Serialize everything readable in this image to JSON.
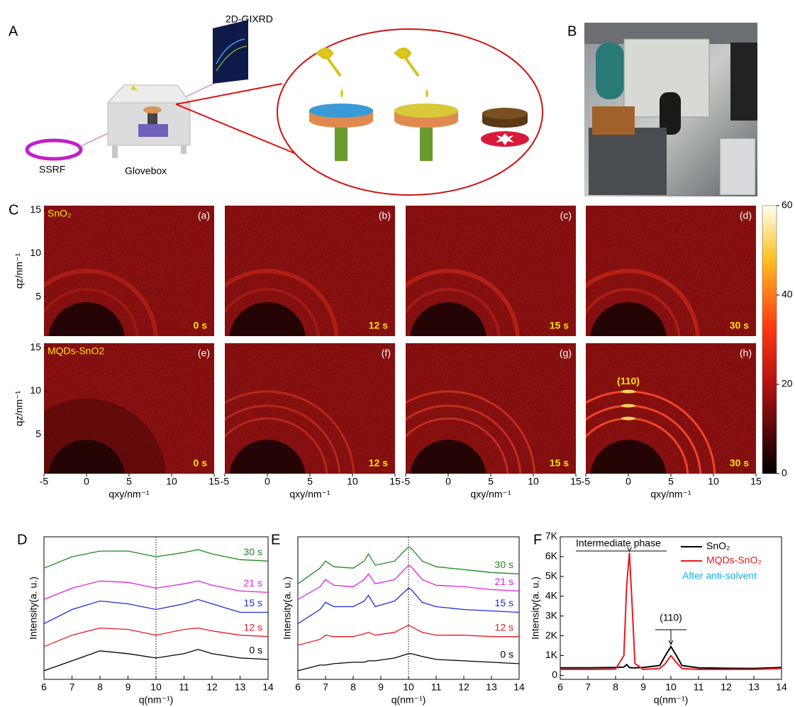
{
  "panel_a": {
    "label": "A",
    "detector": "2D-GIXRD",
    "source": "SSRF",
    "chamber": "Glovebox"
  },
  "panel_b": {
    "label": "B"
  },
  "panel_c": {
    "label": "C",
    "xlabel": "qxy/nm⁻¹",
    "ylabel": "qz/nm⁻¹",
    "xlim": [
      -5,
      15
    ],
    "xticks": [
      -5,
      0,
      5,
      10,
      15
    ],
    "ylim": [
      0.5,
      15.5
    ],
    "yticks": [
      5,
      10,
      15
    ],
    "colorbar": {
      "lim": [
        0,
        60
      ],
      "ticks": [
        0,
        20,
        40,
        60
      ]
    },
    "peak_label": "(110)",
    "rows": [
      {
        "sample": "SnO₂",
        "panels": [
          {
            "label": "(a)",
            "time": "0 s"
          },
          {
            "label": "(b)",
            "time": "12 s"
          },
          {
            "label": "(c)",
            "time": "15 s"
          },
          {
            "label": "(d)",
            "time": "30 s"
          }
        ]
      },
      {
        "sample": "MQDs-SnO2",
        "panels": [
          {
            "label": "(e)",
            "time": "0 s"
          },
          {
            "label": "(f)",
            "time": "12 s"
          },
          {
            "label": "(g)",
            "time": "15 s"
          },
          {
            "label": "(h)",
            "time": "30 s"
          }
        ]
      }
    ]
  },
  "chart_data": [
    {
      "type": "line",
      "label": "D",
      "xlabel": "q(nm⁻¹)",
      "ylabel": "Intensity(a. u.)",
      "xlim": [
        6,
        14
      ],
      "xticks": [
        6,
        7,
        8,
        9,
        10,
        11,
        12,
        13,
        14
      ],
      "ylim": [
        0,
        100
      ],
      "reference_line": 10,
      "x": [
        6,
        7,
        8,
        9,
        10,
        11,
        11.5,
        12,
        13,
        14
      ],
      "series": [
        {
          "name": "0 s",
          "color": "#000000",
          "values": [
            6,
            13,
            20,
            18,
            15,
            18,
            21,
            18,
            15,
            14
          ]
        },
        {
          "name": "12 s",
          "color": "#e8191e",
          "values": [
            23,
            31,
            36,
            35,
            31,
            35,
            36,
            34,
            31,
            30
          ]
        },
        {
          "name": "15 s",
          "color": "#1c2ed8",
          "values": [
            39,
            49,
            55,
            53,
            49,
            53,
            56,
            53,
            47,
            47
          ]
        },
        {
          "name": "21 s",
          "color": "#e020e0",
          "values": [
            56,
            64,
            69,
            68,
            64,
            67,
            69,
            66,
            62,
            61
          ]
        },
        {
          "name": "30 s",
          "color": "#1a8a1a",
          "values": [
            78,
            86,
            90,
            90,
            86,
            89,
            91,
            88,
            84,
            83
          ]
        }
      ]
    },
    {
      "type": "line",
      "label": "E",
      "xlabel": "q(nm⁻¹)",
      "ylabel": "Intensity(a. u.)",
      "xlim": [
        6,
        14
      ],
      "xticks": [
        6,
        7,
        8,
        9,
        10,
        11,
        12,
        13,
        14
      ],
      "ylim": [
        0,
        100
      ],
      "reference_line": 10,
      "x": [
        6,
        6.8,
        7,
        7.3,
        8,
        8.4,
        8.55,
        8.8,
        9.5,
        10,
        10.1,
        10.5,
        11,
        12,
        13,
        14
      ],
      "series": [
        {
          "name": "0 s",
          "color": "#000000",
          "values": [
            6,
            10,
            10,
            11,
            12,
            12,
            13,
            13,
            15,
            18,
            18,
            16,
            14,
            13,
            12,
            11
          ]
        },
        {
          "name": "12 s",
          "color": "#e8191e",
          "values": [
            24,
            28,
            31,
            30,
            30,
            32,
            33,
            31,
            33,
            38,
            37,
            33,
            31,
            31,
            30,
            30
          ]
        },
        {
          "name": "15 s",
          "color": "#1c2ed8",
          "values": [
            39,
            49,
            54,
            51,
            51,
            55,
            59,
            51,
            55,
            64,
            63,
            54,
            51,
            49,
            48,
            47
          ]
        },
        {
          "name": "21 s",
          "color": "#e020e0",
          "values": [
            56,
            65,
            70,
            66,
            65,
            70,
            74,
            67,
            70,
            80,
            79,
            70,
            66,
            65,
            63,
            62
          ]
        },
        {
          "name": "30 s",
          "color": "#1a8a1a",
          "values": [
            67,
            78,
            83,
            79,
            78,
            83,
            88,
            80,
            83,
            93,
            92,
            83,
            79,
            77,
            75,
            74
          ]
        }
      ]
    },
    {
      "type": "line",
      "label": "F",
      "xlabel": "q(nm⁻¹)",
      "ylabel": "Intensity(a. u.)",
      "xlim": [
        6,
        14
      ],
      "xticks": [
        6,
        7,
        8,
        9,
        10,
        11,
        12,
        13,
        14
      ],
      "ylim": [
        -200,
        7000
      ],
      "yticks": [
        0,
        {
          "value": 1000,
          "label": "1K"
        },
        {
          "value": 2000,
          "label": "2K"
        },
        {
          "value": 3000,
          "label": "3K"
        },
        {
          "value": 4000,
          "label": "4K"
        },
        {
          "value": 5000,
          "label": "5K"
        },
        {
          "value": 6000,
          "label": "6K"
        },
        {
          "value": 7000,
          "label": "7K"
        }
      ],
      "annotations": [
        "Intermediate phase",
        "(110)"
      ],
      "legend_note": "After anti-solvent",
      "x": [
        6,
        7,
        8,
        8.3,
        8.4,
        8.5,
        8.6,
        8.7,
        9,
        9.6,
        9.8,
        10,
        10.2,
        10.4,
        11,
        12,
        13,
        14
      ],
      "series": [
        {
          "name": "SnO₂",
          "color": "#000000",
          "values": [
            380,
            380,
            400,
            420,
            550,
            400,
            380,
            380,
            400,
            500,
            1000,
            1450,
            1000,
            500,
            380,
            360,
            350,
            400
          ]
        },
        {
          "name": "MQDs-SnO₂",
          "color": "#e8191e",
          "values": [
            300,
            300,
            320,
            1000,
            4500,
            6200,
            3500,
            600,
            300,
            350,
            600,
            1000,
            650,
            350,
            300,
            300,
            300,
            350
          ]
        }
      ]
    }
  ]
}
